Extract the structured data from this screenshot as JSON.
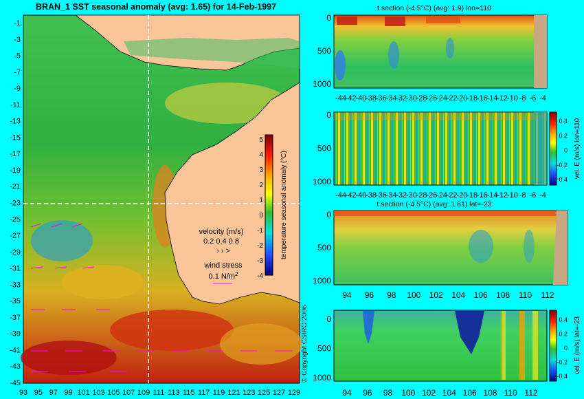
{
  "map": {
    "title": "BRAN_1 SST seasonal anomaly (avg: 1.65) for 14-Feb-1997",
    "y_ticks": [
      "-1",
      "-3",
      "-5",
      "-7",
      "-9",
      "-11",
      "-13",
      "-15",
      "-17",
      "-19",
      "-21",
      "-23",
      "-25",
      "-27",
      "-29",
      "-31",
      "-33",
      "-35",
      "-37",
      "-39",
      "-41",
      "-43",
      "-45"
    ],
    "x_ticks": [
      "93",
      "95",
      "97",
      "99",
      "101",
      "103",
      "105",
      "107",
      "109",
      "111",
      "113",
      "115",
      "117",
      "119",
      "121",
      "123",
      "125",
      "127",
      "129"
    ],
    "colorbar": {
      "label": "temperature seasonal anomaly (°C)",
      "ticks": [
        "5",
        "4",
        "3",
        "2",
        "1",
        "0",
        "-1",
        "-2",
        "-3",
        "-4"
      ],
      "range": [
        -4,
        5
      ]
    },
    "velocity_legend": {
      "label": "velocity (m/s)",
      "values": "0.2 0.4 0.8"
    },
    "wind_legend": {
      "label": "wind stress",
      "value": "0.1 N/m",
      "exp": "2"
    },
    "copyright": "© Copyright CSIRO 2006",
    "land_color": "#fbc59a",
    "section_lines": {
      "lon": 110,
      "lat": -23
    }
  },
  "panels": [
    {
      "title": "t section (-4.5°C) (avg: 1.9) lon=110",
      "y_ticks": [
        "0",
        "500",
        "1000"
      ],
      "x_ticks": [
        "-44",
        "-42",
        "-40",
        "-38",
        "-36",
        "-34",
        "-32",
        "-30",
        "-28",
        "-26",
        "-24",
        "-22",
        "-20",
        "-18",
        "-16",
        "-14",
        "-12",
        "-10",
        "-8",
        "-6",
        "-4"
      ],
      "land_color": "#c8a882"
    },
    {
      "title": "",
      "y_ticks": [
        "0",
        "500",
        "1000"
      ],
      "x_ticks": [
        "-44",
        "-42",
        "-40",
        "-38",
        "-36",
        "-34",
        "-32",
        "-30",
        "-28",
        "-26",
        "-24",
        "-22",
        "-20",
        "-18",
        "-16",
        "-14",
        "-12",
        "-10",
        "-8",
        "-6",
        "-4"
      ],
      "colorbar": {
        "label": "vel. E (m/s) lon=110",
        "ticks": [
          "0.4",
          "0.2",
          "0",
          "-0.2",
          "-0.4"
        ]
      }
    },
    {
      "title": "t section (-4.5°C) (avg: 1.61) lat=-23",
      "y_ticks": [
        "0",
        "500",
        "1000"
      ],
      "x_ticks": [
        "94",
        "96",
        "98",
        "100",
        "102",
        "104",
        "106",
        "108",
        "110",
        "112"
      ],
      "land_color": "#c8a882"
    },
    {
      "title": "",
      "y_ticks": [
        "0",
        "500",
        "1000"
      ],
      "x_ticks": [
        "94",
        "96",
        "98",
        "100",
        "102",
        "104",
        "106",
        "108",
        "110",
        "112"
      ],
      "colorbar": {
        "label": "vel. E (m/s) lat=-23",
        "ticks": [
          "0.4",
          "0.2",
          "0",
          "-0.2",
          "-0.4"
        ]
      }
    }
  ]
}
